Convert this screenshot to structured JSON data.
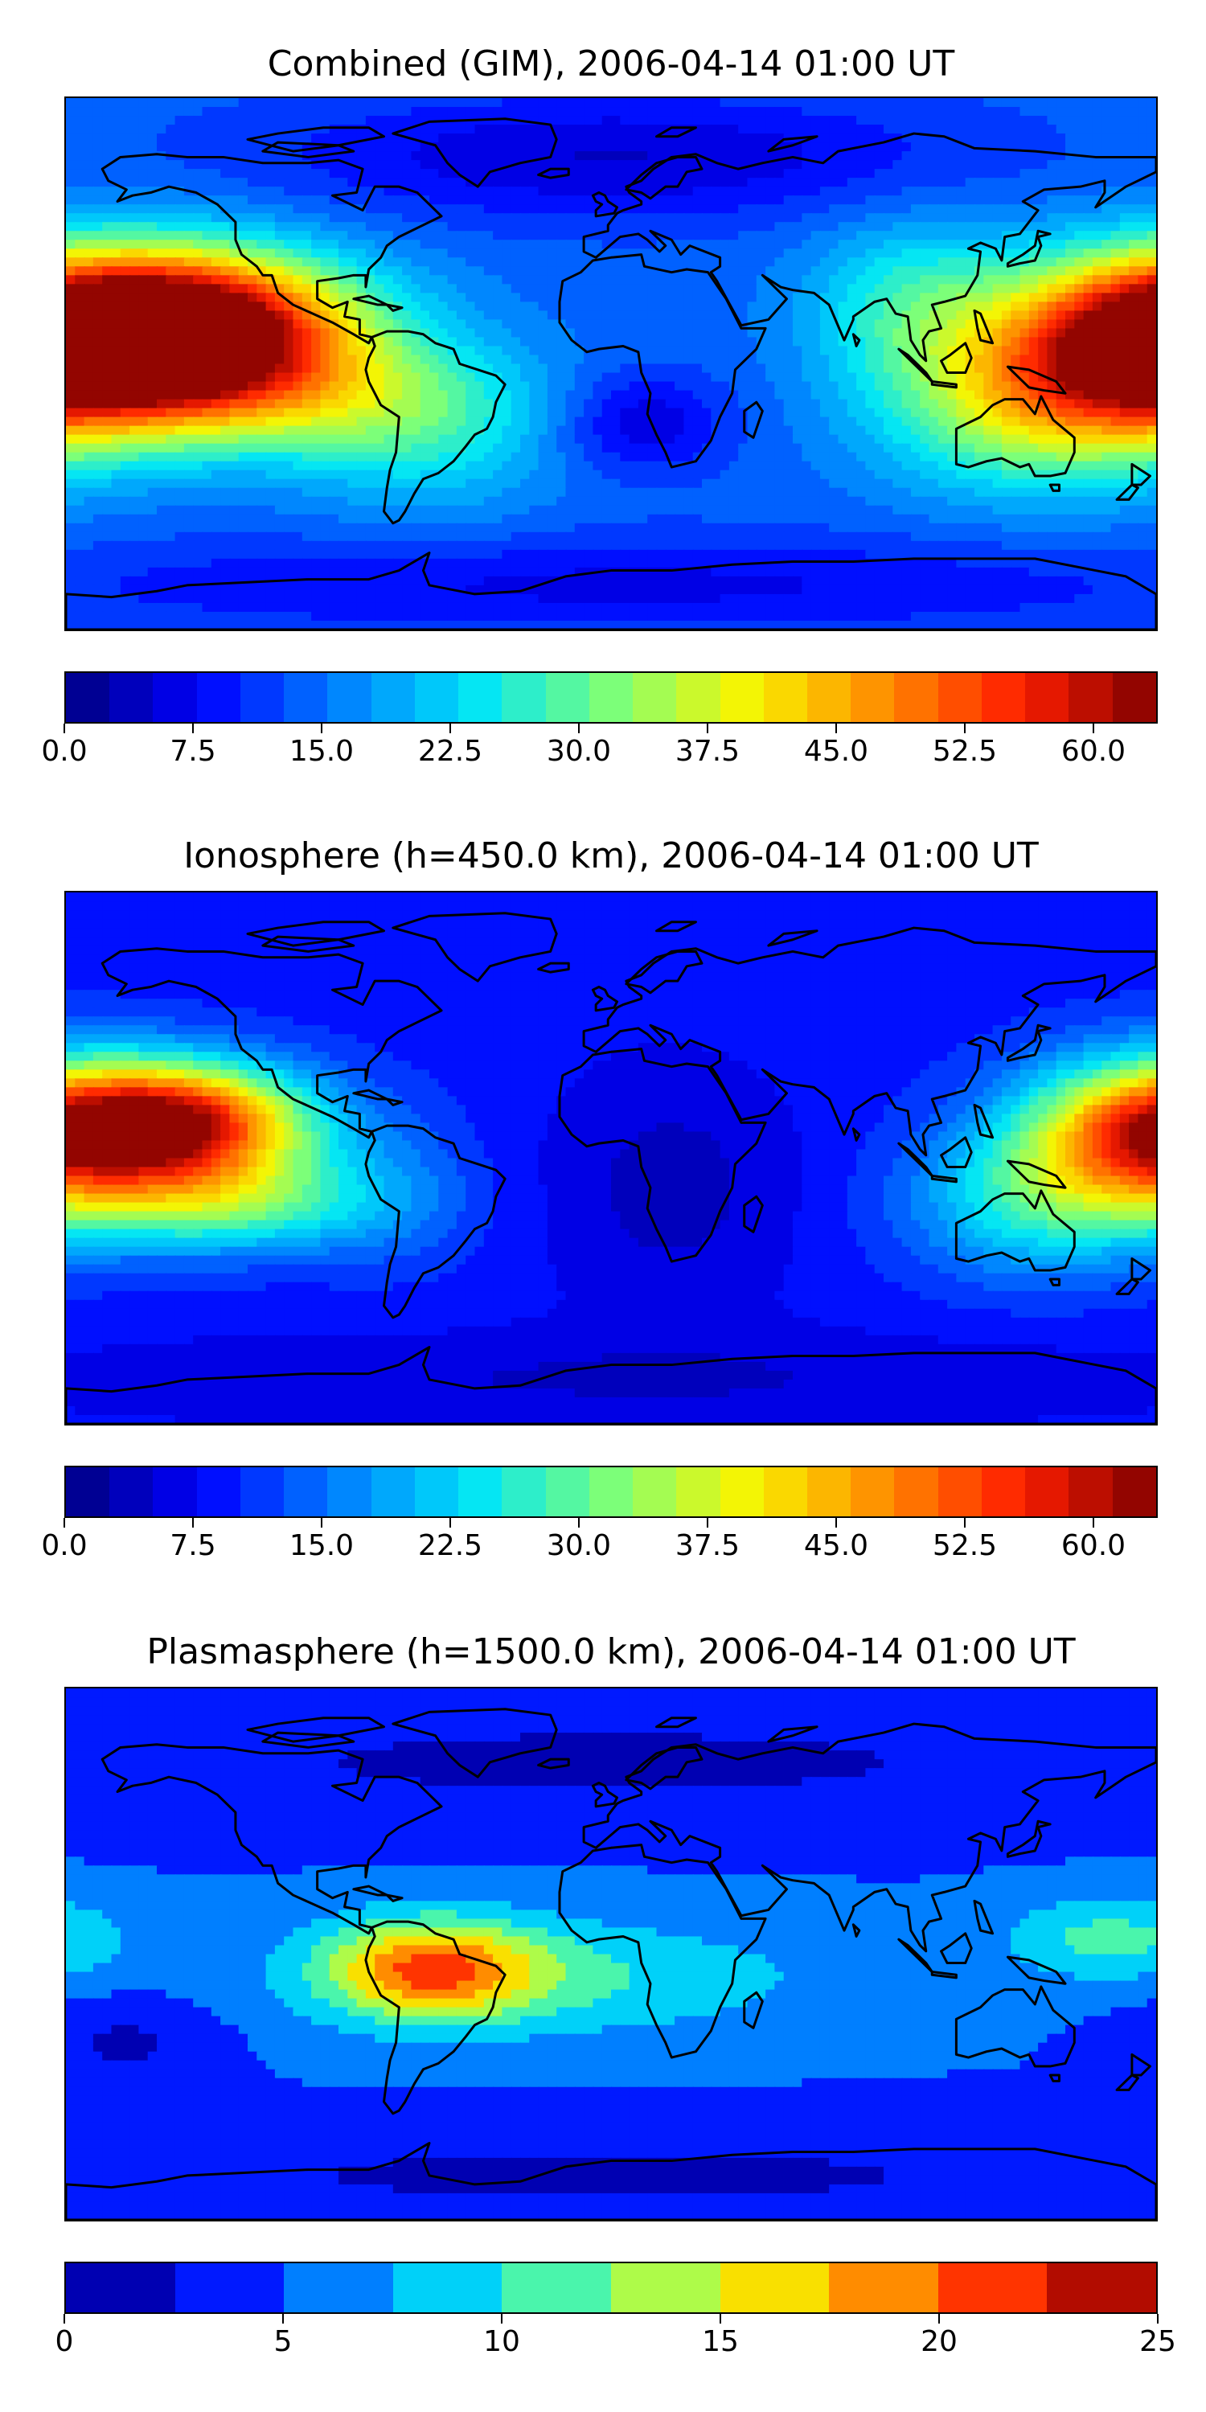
{
  "panels": [
    {
      "title": "Combined (GIM), 2006-04-14 01:00 UT",
      "colorbar": {
        "vmin": 0,
        "vmax": 63.75,
        "levels": 25,
        "ticks": [
          "0.0",
          "7.5",
          "15.0",
          "22.5",
          "30.0",
          "37.5",
          "45.0",
          "52.5",
          "60.0"
        ],
        "tick_values": [
          0,
          7.5,
          15,
          22.5,
          30,
          37.5,
          45,
          52.5,
          60
        ]
      },
      "field": {
        "background": 14,
        "blobs": [
          {
            "lon": -135,
            "lat": 12,
            "slon": 38,
            "slat": 18,
            "amp": 48
          },
          {
            "lon": -110,
            "lat": -12,
            "slon": 50,
            "slat": 15,
            "amp": 15
          },
          {
            "lon": 180,
            "lat": 8,
            "slon": 35,
            "slat": 20,
            "amp": 44
          },
          {
            "lon": 140,
            "lat": -15,
            "slon": 35,
            "slat": 20,
            "amp": 20
          },
          {
            "lon": 100,
            "lat": 20,
            "slon": 25,
            "slat": 20,
            "amp": 12
          },
          {
            "lon": -60,
            "lat": -25,
            "slon": 30,
            "slat": 20,
            "amp": 8
          },
          {
            "lon": 10,
            "lat": -20,
            "slon": 20,
            "slat": 12,
            "amp": -9
          },
          {
            "lon": 0,
            "lat": 70,
            "slon": 80,
            "slat": 15,
            "amp": -9
          },
          {
            "lon": 0,
            "lat": -75,
            "slon": 150,
            "slat": 12,
            "amp": -7
          }
        ]
      }
    },
    {
      "title": "Ionosphere  (h=450.0 km), 2006-04-14 01:00 UT",
      "colorbar": {
        "vmin": 0,
        "vmax": 63.75,
        "levels": 25,
        "ticks": [
          "0.0",
          "7.5",
          "15.0",
          "22.5",
          "30.0",
          "37.5",
          "45.0",
          "52.5",
          "60.0"
        ],
        "tick_values": [
          0,
          7.5,
          15,
          22.5,
          30,
          37.5,
          45,
          52.5,
          60
        ]
      },
      "field": {
        "background": 9,
        "blobs": [
          {
            "lon": -140,
            "lat": 12,
            "slon": 30,
            "slat": 14,
            "amp": 43
          },
          {
            "lon": -125,
            "lat": -15,
            "slon": 35,
            "slat": 12,
            "amp": 20
          },
          {
            "lon": 178,
            "lat": 8,
            "slon": 30,
            "slat": 18,
            "amp": 38
          },
          {
            "lon": 140,
            "lat": -15,
            "slon": 30,
            "slat": 18,
            "amp": 15
          },
          {
            "lon": -70,
            "lat": -10,
            "slon": 20,
            "slat": 20,
            "amp": 4
          },
          {
            "lon": 20,
            "lat": -10,
            "slon": 30,
            "slat": 30,
            "amp": -5
          },
          {
            "lon": 0,
            "lat": -75,
            "slon": 150,
            "slat": 12,
            "amp": -4
          }
        ]
      }
    },
    {
      "title": "Plasmasphere (h=1500.0 km), 2006-04-14 01:00 UT",
      "colorbar": {
        "vmin": 0,
        "vmax": 25,
        "levels": 10,
        "ticks": [
          "0",
          "5",
          "10",
          "15",
          "20",
          "25"
        ],
        "tick_values": [
          0,
          5,
          10,
          15,
          20,
          25
        ]
      },
      "field": {
        "background": 5,
        "blobs": [
          {
            "lon": -60,
            "lat": -5,
            "slon": 25,
            "slat": 12,
            "amp": 13
          },
          {
            "lon": -15,
            "lat": -8,
            "slon": 60,
            "slat": 14,
            "amp": 5
          },
          {
            "lon": 165,
            "lat": 5,
            "slon": 25,
            "slat": 10,
            "amp": 6
          },
          {
            "lon": 0,
            "lat": 65,
            "slon": 150,
            "slat": 15,
            "amp": -3
          },
          {
            "lon": 0,
            "lat": -75,
            "slon": 150,
            "slat": 12,
            "amp": -3
          },
          {
            "lon": -160,
            "lat": -30,
            "slon": 20,
            "slat": 10,
            "amp": -3
          }
        ]
      }
    }
  ],
  "colormap": {
    "stops": [
      "#00007f",
      "#0000ff",
      "#007fff",
      "#00e5f8",
      "#7cff79",
      "#f8f500",
      "#ff8c00",
      "#ff1e00",
      "#7f0000"
    ]
  }
}
